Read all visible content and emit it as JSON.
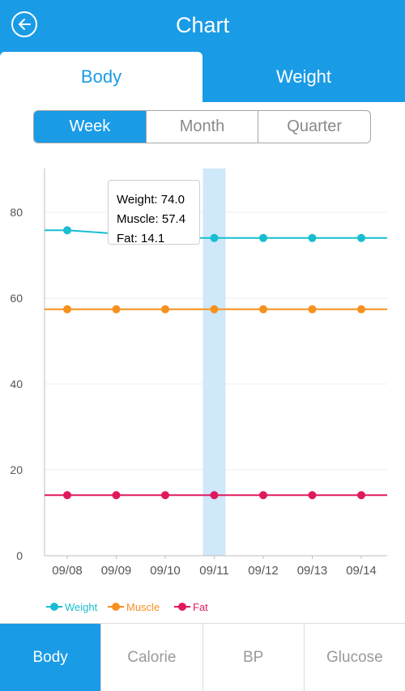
{
  "header": {
    "title": "Chart"
  },
  "tabs": [
    {
      "label": "Body",
      "active": true
    },
    {
      "label": "Weight",
      "active": false
    }
  ],
  "period": [
    {
      "label": "Week",
      "active": true
    },
    {
      "label": "Month",
      "active": false
    },
    {
      "label": "Quarter",
      "active": false
    }
  ],
  "tooltip": {
    "weight": "Weight: 74.0",
    "muscle": "Muscle: 57.4",
    "fat": "Fat: 14.1"
  },
  "chart_data": {
    "type": "line",
    "x": [
      "09/08",
      "09/09",
      "09/10",
      "09/11",
      "09/12",
      "09/13",
      "09/14"
    ],
    "ylim": [
      0,
      90
    ],
    "yticks": [
      0,
      20,
      40,
      60,
      80
    ],
    "grid": true,
    "highlight_category": "09/11",
    "legend_position": "bottom-left",
    "series": [
      {
        "name": "Weight",
        "color": "#18bdd0",
        "values": [
          75.8,
          75.0,
          74.0,
          74.0,
          74.0,
          74.0,
          74.0
        ]
      },
      {
        "name": "Muscle",
        "color": "#f7911d",
        "values": [
          57.4,
          57.4,
          57.4,
          57.4,
          57.4,
          57.4,
          57.4
        ]
      },
      {
        "name": "Fat",
        "color": "#e0185f",
        "values": [
          14.1,
          14.1,
          14.1,
          14.1,
          14.1,
          14.1,
          14.1
        ]
      }
    ]
  },
  "bottom_nav": [
    {
      "label": "Body",
      "active": true
    },
    {
      "label": "Calorie",
      "active": false
    },
    {
      "label": "BP",
      "active": false
    },
    {
      "label": "Glucose",
      "active": false
    }
  ]
}
